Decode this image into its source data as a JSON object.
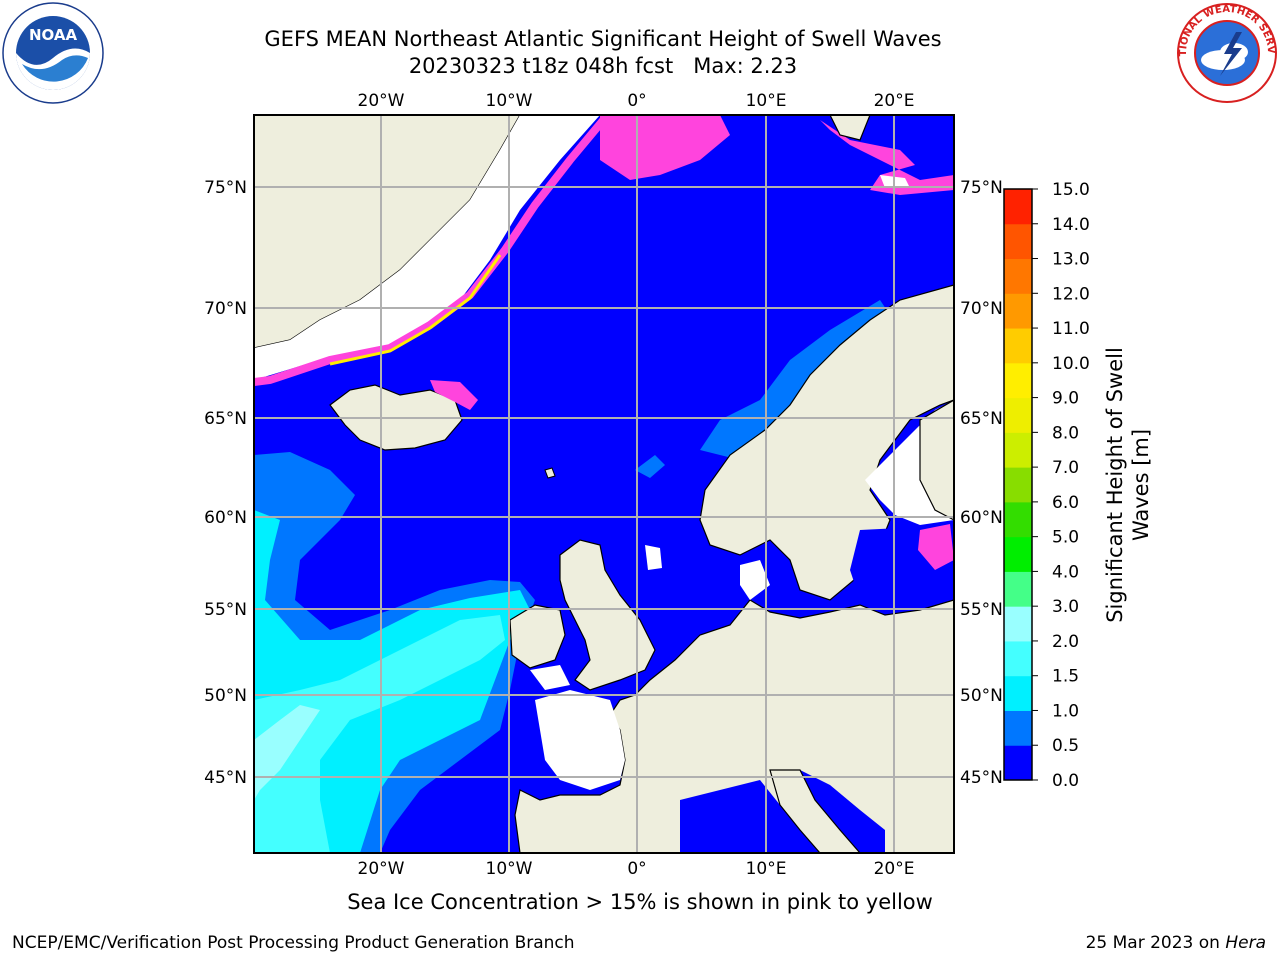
{
  "title": {
    "line1": "GEFS MEAN Northeast Atlantic Significant Height of Swell Waves",
    "line2": "20230323 t18z 048h fcst   Max: 2.23"
  },
  "logos": {
    "left": "noaa-logo",
    "left_text": "NOAA",
    "right": "nws-logo",
    "right_text": "NATIONAL WEATHER SERVICE"
  },
  "map": {
    "lon_labels": [
      "20°W",
      "10°W",
      "0°",
      "10°E",
      "20°E"
    ],
    "lat_labels": [
      "75°N",
      "70°N",
      "65°N",
      "60°N",
      "55°N",
      "50°N",
      "45°N"
    ],
    "colors": {
      "ocean_low": "#0000ff",
      "ocean_mid": "#0077ff",
      "ocean_cyan": "#00f0ff",
      "ocean_light": "#44ffff",
      "ocean_pale": "#99ffff",
      "land": "#eeeedd",
      "sea_ice_pink": "#ff44dd",
      "sea_ice_yellow": "#ffee00",
      "grid": "#b0b0b0"
    }
  },
  "colorbar": {
    "label": "Significant Height of Swell Waves [m]",
    "ticks": [
      "15.0",
      "14.0",
      "13.0",
      "12.0",
      "11.0",
      "10.0",
      "9.0",
      "8.0",
      "7.0",
      "6.0",
      "5.0",
      "4.0",
      "3.0",
      "2.0",
      "1.5",
      "1.0",
      "0.5",
      "0.0"
    ],
    "colors": [
      "#0000ff",
      "#0077ff",
      "#00f0ff",
      "#44ffff",
      "#99ffff",
      "#44ff88",
      "#00ee00",
      "#33dd00",
      "#88dd00",
      "#ccee00",
      "#eeee00",
      "#ffee00",
      "#ffcc00",
      "#ff9900",
      "#ff7700",
      "#ff5500",
      "#ff2200",
      "#ff0000"
    ]
  },
  "footnote": "Sea Ice Concentration > 15% is shown in pink to yellow",
  "credit": "NCEP/EMC/Verification Post Processing Product Generation Branch",
  "date": {
    "text": "25 Mar 2023 on ",
    "host": "Hera"
  }
}
